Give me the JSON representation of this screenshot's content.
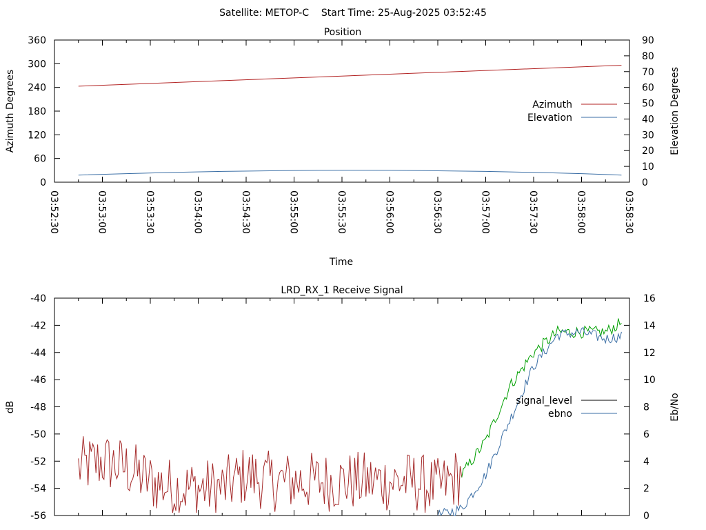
{
  "header": {
    "title": "Satellite: METOP-C    Start Time: 25-Aug-2025 03:52:45"
  },
  "chart_data": [
    {
      "type": "line",
      "title": "Position",
      "xlabel": "Time",
      "ylabel": "Azimuth Degrees",
      "y2label": "Elevation Degrees",
      "xlim": [
        "03:52:30",
        "03:58:30"
      ],
      "ylim": [
        0,
        360
      ],
      "y2lim": [
        0,
        90
      ],
      "xticks": [
        "03:52:30",
        "03:53:00",
        "03:53:30",
        "03:54:00",
        "03:54:30",
        "03:55:00",
        "03:55:30",
        "03:56:00",
        "03:56:30",
        "03:57:00",
        "03:57:30",
        "03:58:00",
        "03:58:30"
      ],
      "yticks": [
        0,
        60,
        120,
        180,
        240,
        300,
        360
      ],
      "y2ticks": [
        0,
        10,
        20,
        30,
        40,
        50,
        60,
        70,
        80,
        90
      ],
      "legend_position": "right",
      "series": [
        {
          "name": "Azimuth",
          "axis": "y",
          "color": "#b22222",
          "x": [
            "03:52:45",
            "03:58:25"
          ],
          "values": [
            243,
            296
          ]
        },
        {
          "name": "Elevation",
          "axis": "y2",
          "color": "#3a6ea5",
          "x": [
            "03:52:45",
            "03:53:15",
            "03:53:45",
            "03:54:15",
            "03:54:45",
            "03:55:15",
            "03:55:35",
            "03:56:00",
            "03:56:30",
            "03:57:00",
            "03:57:30",
            "03:58:00",
            "03:58:25"
          ],
          "values": [
            4.5,
            5.4,
            6.2,
            6.8,
            7.2,
            7.5,
            7.6,
            7.5,
            7.2,
            6.8,
            6.2,
            5.4,
            4.5
          ]
        }
      ]
    },
    {
      "type": "line",
      "title": "LRD_RX_1 Receive Signal",
      "ylabel": "dB",
      "y2label": "Eb/No",
      "xlim": [
        "03:52:30",
        "03:58:30"
      ],
      "ylim": [
        -56,
        -40
      ],
      "y2lim": [
        0,
        16
      ],
      "yticks": [
        -56,
        -54,
        -52,
        -50,
        -48,
        -46,
        -44,
        -42,
        -40
      ],
      "y2ticks": [
        0,
        2,
        4,
        6,
        8,
        10,
        12,
        14,
        16
      ],
      "legend_position": "right",
      "legend_entries": [
        "signal_level",
        "ebno"
      ],
      "series": [
        {
          "name": "signal_level",
          "axis": "y",
          "color": "#a52a2a",
          "note_color_after_lock": "#00a000",
          "x": [
            "03:52:45",
            "03:53:00",
            "03:53:15",
            "03:53:30",
            "03:53:45",
            "03:54:00",
            "03:54:15",
            "03:54:30",
            "03:54:45",
            "03:55:00",
            "03:55:15",
            "03:55:30",
            "03:55:45",
            "03:56:00",
            "03:56:15",
            "03:56:30",
            "03:56:45",
            "03:57:00",
            "03:57:15",
            "03:57:30",
            "03:57:45",
            "03:58:00",
            "03:58:15",
            "03:58:25"
          ],
          "values": [
            -52.5,
            -52.0,
            -52.5,
            -53.5,
            -54.0,
            -54.0,
            -54.0,
            -53.0,
            -53.5,
            -53.5,
            -53.5,
            -53.5,
            -53.5,
            -53.5,
            -53.5,
            -54.0,
            -53.0,
            -50.5,
            -46.5,
            -44.0,
            -42.5,
            -42.5,
            -42.5,
            -41.8
          ]
        },
        {
          "name": "ebno",
          "axis": "y2",
          "color": "#3a6ea5",
          "x": [
            "03:56:30",
            "03:56:45",
            "03:57:00",
            "03:57:15",
            "03:57:30",
            "03:57:45",
            "03:58:00",
            "03:58:15",
            "03:58:25"
          ],
          "values": [
            0,
            0.5,
            3,
            7,
            11,
            13.3,
            13.5,
            13,
            13.2
          ]
        }
      ]
    }
  ]
}
